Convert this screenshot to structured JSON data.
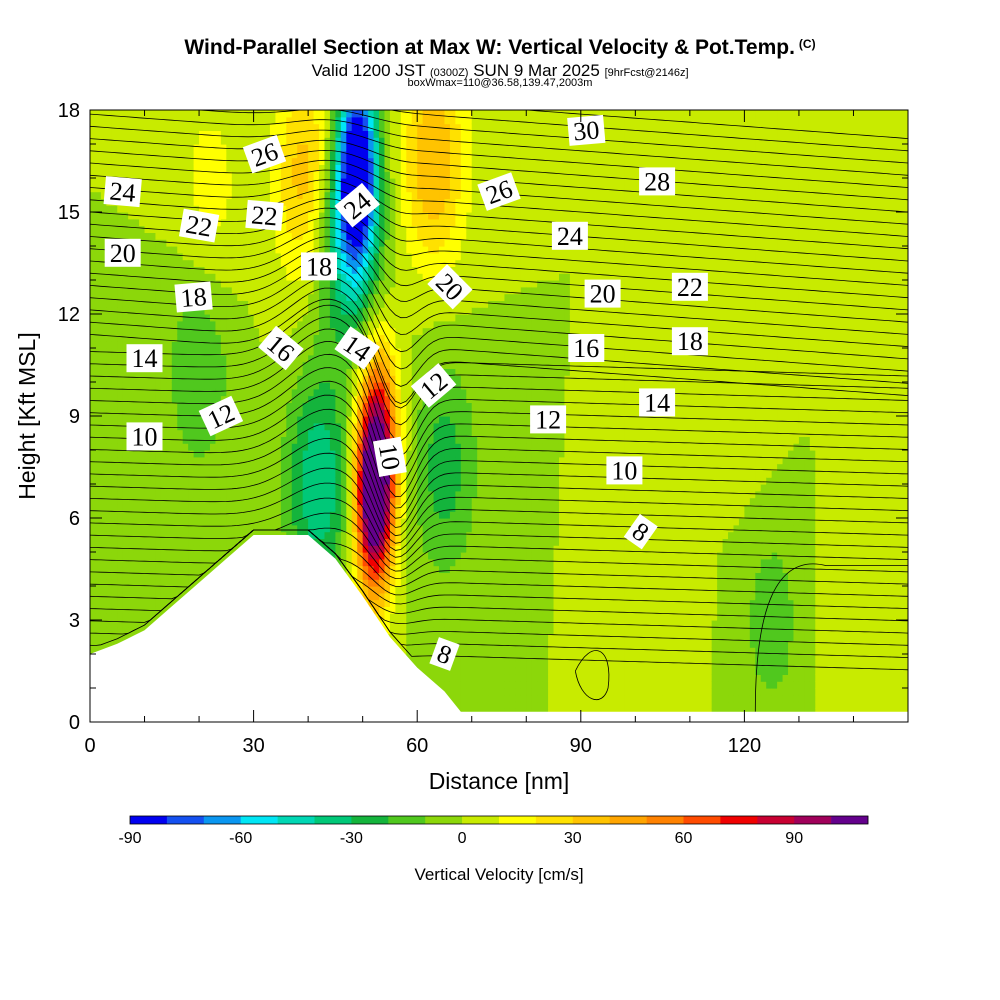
{
  "header": {
    "title": "Wind-Parallel Section at Max W: Vertical Velocity & Pot.Temp.",
    "copyright": "(C)",
    "valid_prefix": "Valid 1200 JST",
    "valid_utc": "(0300Z)",
    "valid_date": "SUN 9 Mar 2025",
    "forecast_info": "[9hrFcst@2146z]",
    "box_info": "boxWmax=110@36.58,139.47,2003m"
  },
  "chart_data": {
    "type": "heatmap",
    "xlabel": "Distance [nm]",
    "ylabel": "Height [Kft MSL]",
    "xlim": [
      0,
      150
    ],
    "ylim": [
      0,
      18
    ],
    "xticks": [
      "0",
      "30",
      "60",
      "90",
      "120"
    ],
    "yticks": [
      "0",
      "3",
      "6",
      "9",
      "12",
      "15",
      "18"
    ],
    "colorbar": {
      "title": "Vertical Velocity [cm/s]",
      "range": [
        -90,
        110
      ],
      "step": 10,
      "ticks": [
        "-90",
        "-60",
        "-30",
        "0",
        "30",
        "60",
        "90"
      ],
      "colors": [
        "#0000f0",
        "#1450f0",
        "#0a96f0",
        "#00e6f5",
        "#00d7b4",
        "#00c878",
        "#14b43c",
        "#50c81e",
        "#8cd70a",
        "#c8eb00",
        "#ffff00",
        "#ffe100",
        "#ffc300",
        "#ffa500",
        "#ff8200",
        "#ff4b00",
        "#f00000",
        "#c80032",
        "#a0005a",
        "#64008c"
      ]
    },
    "terrain_top_kft": [
      [
        0,
        2.0
      ],
      [
        5,
        2.3
      ],
      [
        10,
        2.7
      ],
      [
        15,
        3.4
      ],
      [
        20,
        4.1
      ],
      [
        25,
        4.8
      ],
      [
        30,
        5.5
      ],
      [
        40,
        5.5
      ],
      [
        45,
        4.8
      ],
      [
        50,
        3.7
      ],
      [
        55,
        2.5
      ],
      [
        60,
        1.6
      ],
      [
        65,
        0.9
      ],
      [
        68,
        0.3
      ],
      [
        150,
        0.3
      ]
    ],
    "velocity_features": [
      {
        "x": 52,
        "y": 6.5,
        "value": 110
      },
      {
        "x": 53,
        "y": 8.5,
        "value": 60
      },
      {
        "x": 49,
        "y": 16.5,
        "value": -90
      },
      {
        "x": 47,
        "y": 14.5,
        "value": -50
      },
      {
        "x": 42,
        "y": 7.0,
        "value": -40
      },
      {
        "x": 63,
        "y": 16.5,
        "value": 40
      },
      {
        "x": 40,
        "y": 16.0,
        "value": 40
      },
      {
        "x": 22,
        "y": 15.5,
        "value": 15
      },
      {
        "x": 65,
        "y": 7.5,
        "value": -25
      },
      {
        "x": 20,
        "y": 10.5,
        "value": -20
      },
      {
        "x": 125,
        "y": 3.0,
        "value": -15
      },
      {
        "x": 140,
        "y": 3.0,
        "value": 10
      },
      {
        "x": 105,
        "y": 3.0,
        "value": 8
      },
      {
        "x": 120,
        "y": 9.5,
        "value": 8
      }
    ],
    "theta_contour_labels": [
      {
        "text": "26",
        "x": 32,
        "y": 16.7,
        "angle": 20
      },
      {
        "text": "24",
        "x": 6,
        "y": 15.6,
        "angle": -5
      },
      {
        "text": "22",
        "x": 20,
        "y": 14.6,
        "angle": -10
      },
      {
        "text": "22",
        "x": 32,
        "y": 14.9,
        "angle": -5
      },
      {
        "text": "20",
        "x": 6,
        "y": 13.8,
        "angle": 0
      },
      {
        "text": "18",
        "x": 19,
        "y": 12.5,
        "angle": 5
      },
      {
        "text": "18",
        "x": 42,
        "y": 13.4,
        "angle": 0
      },
      {
        "text": "16",
        "x": 35,
        "y": 11.0,
        "angle": -40
      },
      {
        "text": "14",
        "x": 10,
        "y": 10.7,
        "angle": 0
      },
      {
        "text": "14",
        "x": 49,
        "y": 11.0,
        "angle": -35
      },
      {
        "text": "12",
        "x": 24,
        "y": 9.0,
        "angle": 25
      },
      {
        "text": "10",
        "x": 10,
        "y": 8.4,
        "angle": 0
      },
      {
        "text": "24",
        "x": 49,
        "y": 15.2,
        "angle": 40
      },
      {
        "text": "10",
        "x": 55,
        "y": 7.8,
        "angle": -80
      },
      {
        "text": "12",
        "x": 63,
        "y": 9.9,
        "angle": 40
      },
      {
        "text": "20",
        "x": 66,
        "y": 12.8,
        "angle": -45
      },
      {
        "text": "26",
        "x": 75,
        "y": 15.6,
        "angle": 20
      },
      {
        "text": "30",
        "x": 91,
        "y": 17.4,
        "angle": 5
      },
      {
        "text": "28",
        "x": 104,
        "y": 15.9,
        "angle": 0
      },
      {
        "text": "24",
        "x": 88,
        "y": 14.3,
        "angle": 0
      },
      {
        "text": "20",
        "x": 94,
        "y": 12.6,
        "angle": 0
      },
      {
        "text": "22",
        "x": 110,
        "y": 12.8,
        "angle": 0
      },
      {
        "text": "16",
        "x": 91,
        "y": 11.0,
        "angle": 0
      },
      {
        "text": "18",
        "x": 110,
        "y": 11.2,
        "angle": 0
      },
      {
        "text": "12",
        "x": 84,
        "y": 8.9,
        "angle": 0
      },
      {
        "text": "14",
        "x": 104,
        "y": 9.4,
        "angle": 0
      },
      {
        "text": "10",
        "x": 98,
        "y": 7.4,
        "angle": 0
      },
      {
        "text": "8",
        "x": 101,
        "y": 5.6,
        "angle": -35
      },
      {
        "text": "8",
        "x": 65,
        "y": 2.0,
        "angle": -20
      }
    ]
  }
}
